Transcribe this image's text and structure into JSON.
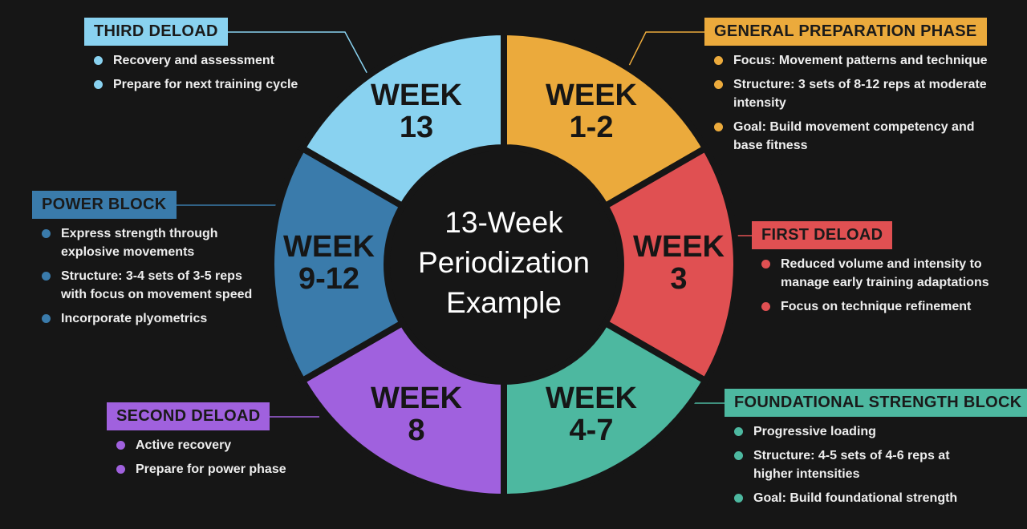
{
  "title": [
    "13-Week",
    "Periodization",
    "Example"
  ],
  "segments": [
    {
      "label": [
        "WEEK",
        "1-2"
      ],
      "color": "#ebaa3c"
    },
    {
      "label": [
        "WEEK",
        "3"
      ],
      "color": "#e05052"
    },
    {
      "label": [
        "WEEK",
        "4-7"
      ],
      "color": "#4db8a0"
    },
    {
      "label": [
        "WEEK",
        "8"
      ],
      "color": "#a061de"
    },
    {
      "label": [
        "WEEK",
        "9-12"
      ],
      "color": "#3a7bab"
    },
    {
      "label": [
        "WEEK",
        "13"
      ],
      "color": "#89d2f0"
    }
  ],
  "phases": [
    {
      "title": "GENERAL PREPARATION PHASE",
      "color": "#ebaa3c",
      "bullets": [
        [
          "Focus: Movement patterns and technique"
        ],
        [
          "Structure: 3 sets of 8-12 reps at moderate",
          "intensity"
        ],
        [
          "Goal: Build movement competency and",
          "base fitness"
        ]
      ]
    },
    {
      "title": "FIRST DELOAD",
      "color": "#e05052",
      "bullets": [
        [
          "Reduced volume and intensity to",
          "manage early training adaptations"
        ],
        [
          "Focus on technique refinement"
        ]
      ]
    },
    {
      "title": "FOUNDATIONAL STRENGTH BLOCK",
      "color": "#4db8a0",
      "bullets": [
        [
          "Progressive loading"
        ],
        [
          "Structure: 4-5 sets of 4-6 reps at",
          "higher intensities"
        ],
        [
          "Goal: Build foundational strength"
        ]
      ]
    },
    {
      "title": "SECOND DELOAD",
      "color": "#a061de",
      "bullets": [
        [
          "Active recovery"
        ],
        [
          "Prepare for power phase"
        ]
      ]
    },
    {
      "title": "POWER BLOCK",
      "color": "#3a7bab",
      "bullets": [
        [
          "Express strength through",
          "explosive movements"
        ],
        [
          "Structure: 3-4 sets of 3-5 reps",
          "with focus on movement speed"
        ],
        [
          "Incorporate plyometrics"
        ]
      ]
    },
    {
      "title": "THIRD DELOAD",
      "color": "#89d2f0",
      "bullets": [
        [
          "Recovery and assessment"
        ],
        [
          "Prepare for next training cycle"
        ]
      ]
    }
  ]
}
